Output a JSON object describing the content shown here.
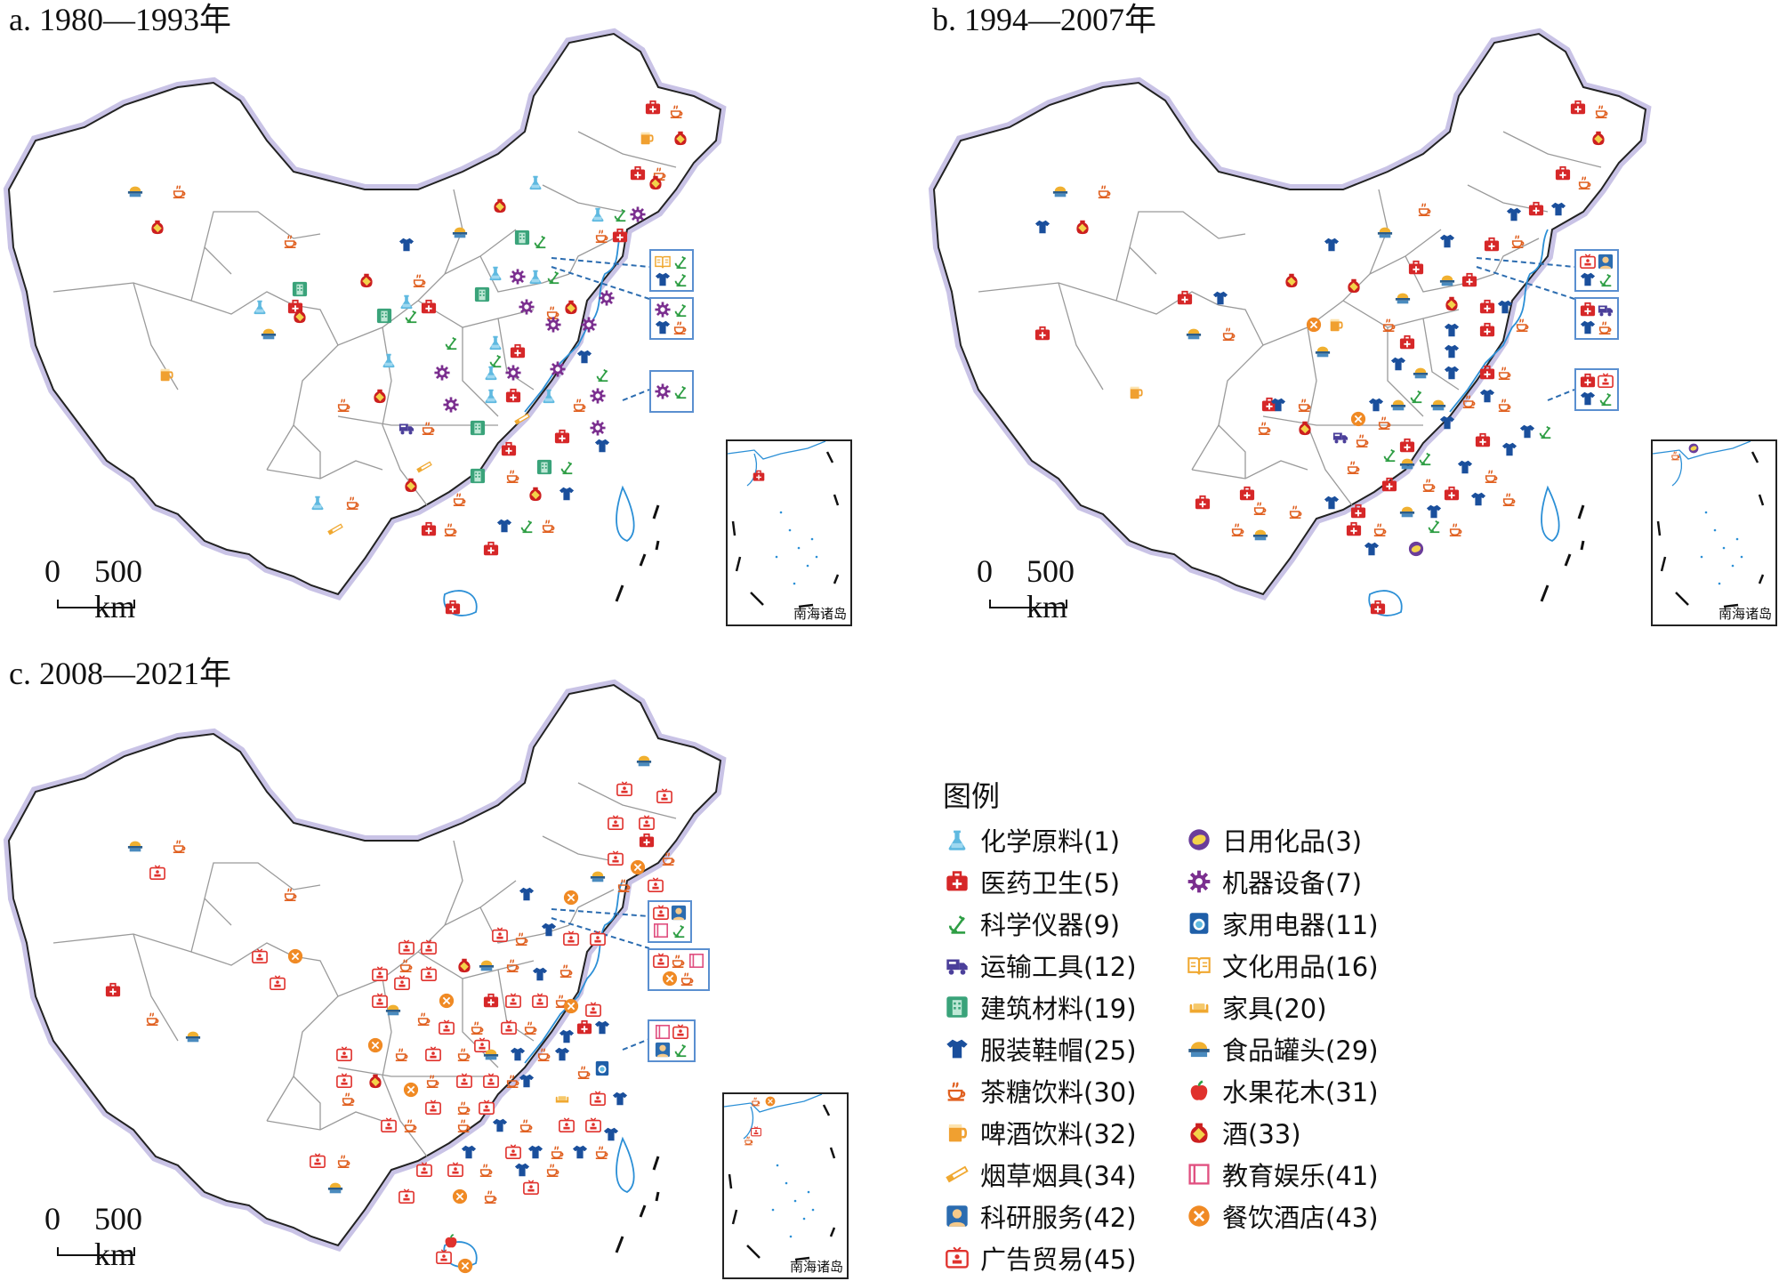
{
  "panels": {
    "a": {
      "title": "a. 1980—1993年"
    },
    "b": {
      "title": "b. 1994—2007年"
    },
    "c": {
      "title": "c. 2008—2021年"
    }
  },
  "scale": {
    "zero": "0",
    "distance": "500 km"
  },
  "inset_caption": "南海诸岛",
  "legend": {
    "title": "图例",
    "items": [
      {
        "label": "化学原料(1)",
        "icon": "flask-icon",
        "color": "#5fb9e0"
      },
      {
        "label": "日用化品(3)",
        "icon": "soap-icon",
        "color": "#6a3d9a"
      },
      {
        "label": "医药卫生(5)",
        "icon": "medical-kit-icon",
        "color": "#d62728"
      },
      {
        "label": "机器设备(7)",
        "icon": "gear-icon",
        "color": "#7b2f8f"
      },
      {
        "label": "科学仪器(9)",
        "icon": "microscope-icon",
        "color": "#2e9e44"
      },
      {
        "label": "家用电器(11)",
        "icon": "washing-machine-icon",
        "color": "#1f5fa8"
      },
      {
        "label": "运输工具(12)",
        "icon": "truck-icon",
        "color": "#4b3f9a"
      },
      {
        "label": "文化用品(16)",
        "icon": "book-icon",
        "color": "#f0a830"
      },
      {
        "label": "建筑材料(19)",
        "icon": "building-icon",
        "color": "#3aa37a"
      },
      {
        "label": "家具(20)",
        "icon": "sofa-icon",
        "color": "#f0a830"
      },
      {
        "label": "服装鞋帽(25)",
        "icon": "shirt-icon",
        "color": "#1a4f9c"
      },
      {
        "label": "食品罐头(29)",
        "icon": "can-icon",
        "color": "#2b5d8a"
      },
      {
        "label": "茶糖饮料(30)",
        "icon": "teacup-icon",
        "color": "#e06020"
      },
      {
        "label": "水果花木(31)",
        "icon": "apple-icon",
        "color": "#e0322d"
      },
      {
        "label": "啤酒饮料(32)",
        "icon": "beer-icon",
        "color": "#f0a030"
      },
      {
        "label": "酒(33)",
        "icon": "wine-jar-icon",
        "color": "#cc1f1f"
      },
      {
        "label": "烟草烟具(34)",
        "icon": "cigarette-icon",
        "color": "#f0a830"
      },
      {
        "label": "教育娱乐(41)",
        "icon": "education-book-icon",
        "color": "#e05080"
      },
      {
        "label": "科研服务(42)",
        "icon": "scientist-icon",
        "color": "#2b6cb0"
      },
      {
        "label": "餐饮酒店(43)",
        "icon": "restaurant-icon",
        "color": "#f08a24"
      },
      {
        "label": "广告贸易(45)",
        "icon": "tv-ad-icon",
        "color": "#e0322d"
      }
    ]
  }
}
